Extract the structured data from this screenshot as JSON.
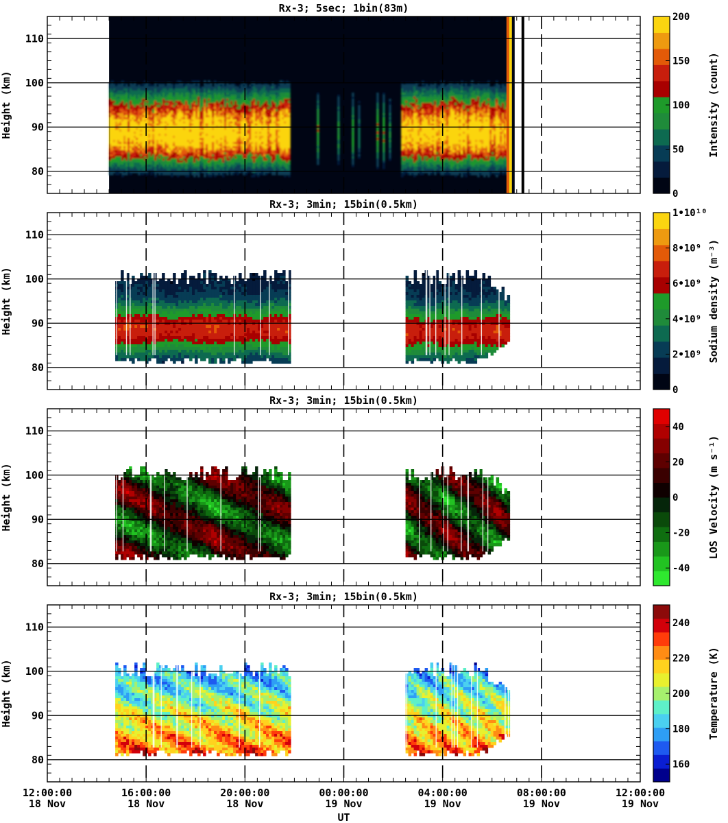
{
  "chart_data": {
    "type": "heatmap",
    "xlabel": "UT",
    "x_ticks": [
      {
        "time": "12:00:00",
        "date": "18 Nov"
      },
      {
        "time": "16:00:00",
        "date": "18 Nov"
      },
      {
        "time": "20:00:00",
        "date": "18 Nov"
      },
      {
        "time": "00:00:00",
        "date": "19 Nov"
      },
      {
        "time": "04:00:00",
        "date": "19 Nov"
      },
      {
        "time": "08:00:00",
        "date": "19 Nov"
      },
      {
        "time": "12:00:00",
        "date": "19 Nov"
      }
    ],
    "xlim": [
      "18 Nov 12:00:00",
      "19 Nov 12:00:00"
    ],
    "grid": true,
    "panels": [
      {
        "id": "intensity",
        "title": "Rx-3;  5sec; 1bin(83m)",
        "ylabel": "Height (km)",
        "ylim": [
          75,
          115
        ],
        "y_ticks": [
          "80",
          "90",
          "100",
          "110"
        ],
        "data_intervals": [
          [
            "18 Nov 14:30",
            "19 Nov 06:55"
          ]
        ],
        "layer_peak_km": 88,
        "colorbar": {
          "label": "Intensity (count)",
          "range": [
            0,
            200
          ],
          "tick_labels": [
            "0",
            "50",
            "100",
            "150",
            "200"
          ],
          "colors": [
            "#000514",
            "#051b3c",
            "#073c55",
            "#0d6a50",
            "#1f8b3a",
            "#1e9a2a",
            "#a80000",
            "#c81e0c",
            "#e35a08",
            "#ee9a10",
            "#fbd510"
          ]
        }
      },
      {
        "id": "sodium_density",
        "title": "Rx-3; 3min; 15bin(0.5km)",
        "ylabel": "Height (km)",
        "ylim": [
          75,
          115
        ],
        "y_ticks": [
          "80",
          "90",
          "100",
          "110"
        ],
        "data_intervals": [
          [
            "18 Nov 14:45",
            "18 Nov 21:50"
          ],
          [
            "19 Nov 02:30",
            "19 Nov 06:40"
          ]
        ],
        "colorbar": {
          "label": "Sodium density (m⁻³)",
          "range": [
            0,
            10000000000
          ],
          "tick_labels": [
            "0",
            "2•10⁹",
            "4•10⁹",
            "6•10⁹",
            "8•10⁹",
            "1•10¹⁰"
          ],
          "colors": [
            "#000514",
            "#051b3c",
            "#073c55",
            "#0d6a50",
            "#1f8b3a",
            "#1e9a2a",
            "#a80000",
            "#c81e0c",
            "#e35a08",
            "#ee9a10",
            "#fbd510"
          ]
        }
      },
      {
        "id": "los_velocity",
        "title": "Rx-3; 3min; 15bin(0.5km)",
        "ylabel": "Height (km)",
        "ylim": [
          75,
          115
        ],
        "y_ticks": [
          "80",
          "90",
          "100",
          "110"
        ],
        "data_intervals": [
          [
            "18 Nov 14:45",
            "18 Nov 21:50"
          ],
          [
            "19 Nov 02:30",
            "19 Nov 06:40"
          ]
        ],
        "colorbar": {
          "label": "LOS Velocity (m s⁻¹)",
          "range": [
            -50,
            50
          ],
          "tick_labels": [
            "-40",
            "-20",
            "0",
            "20",
            "40"
          ],
          "colors": [
            "#2fe82f",
            "#22c222",
            "#199819",
            "#0f6e10",
            "#0a4a0a",
            "#05250a",
            "#0f0000",
            "#3a0000",
            "#5e0000",
            "#850000",
            "#b00000",
            "#e00000"
          ]
        }
      },
      {
        "id": "temperature",
        "title": "Rx-3; 3min; 15bin(0.5km)",
        "ylabel": "Height (km)",
        "ylim": [
          75,
          115
        ],
        "y_ticks": [
          "80",
          "90",
          "100",
          "110"
        ],
        "data_intervals": [
          [
            "18 Nov 14:45",
            "18 Nov 21:50"
          ],
          [
            "19 Nov 02:30",
            "19 Nov 06:40"
          ]
        ],
        "colorbar": {
          "label": "Temperature (K)",
          "range": [
            150,
            250
          ],
          "tick_labels": [
            "160",
            "180",
            "200",
            "220",
            "240"
          ],
          "colors": [
            "#00008c",
            "#0a1ed2",
            "#1e5af0",
            "#2e9ef5",
            "#4ad0f0",
            "#5ef0c8",
            "#a6f06e",
            "#e8f02e",
            "#ffd21e",
            "#ff8c14",
            "#ff3c0a",
            "#d2000a",
            "#8c0a0a"
          ]
        }
      }
    ]
  }
}
